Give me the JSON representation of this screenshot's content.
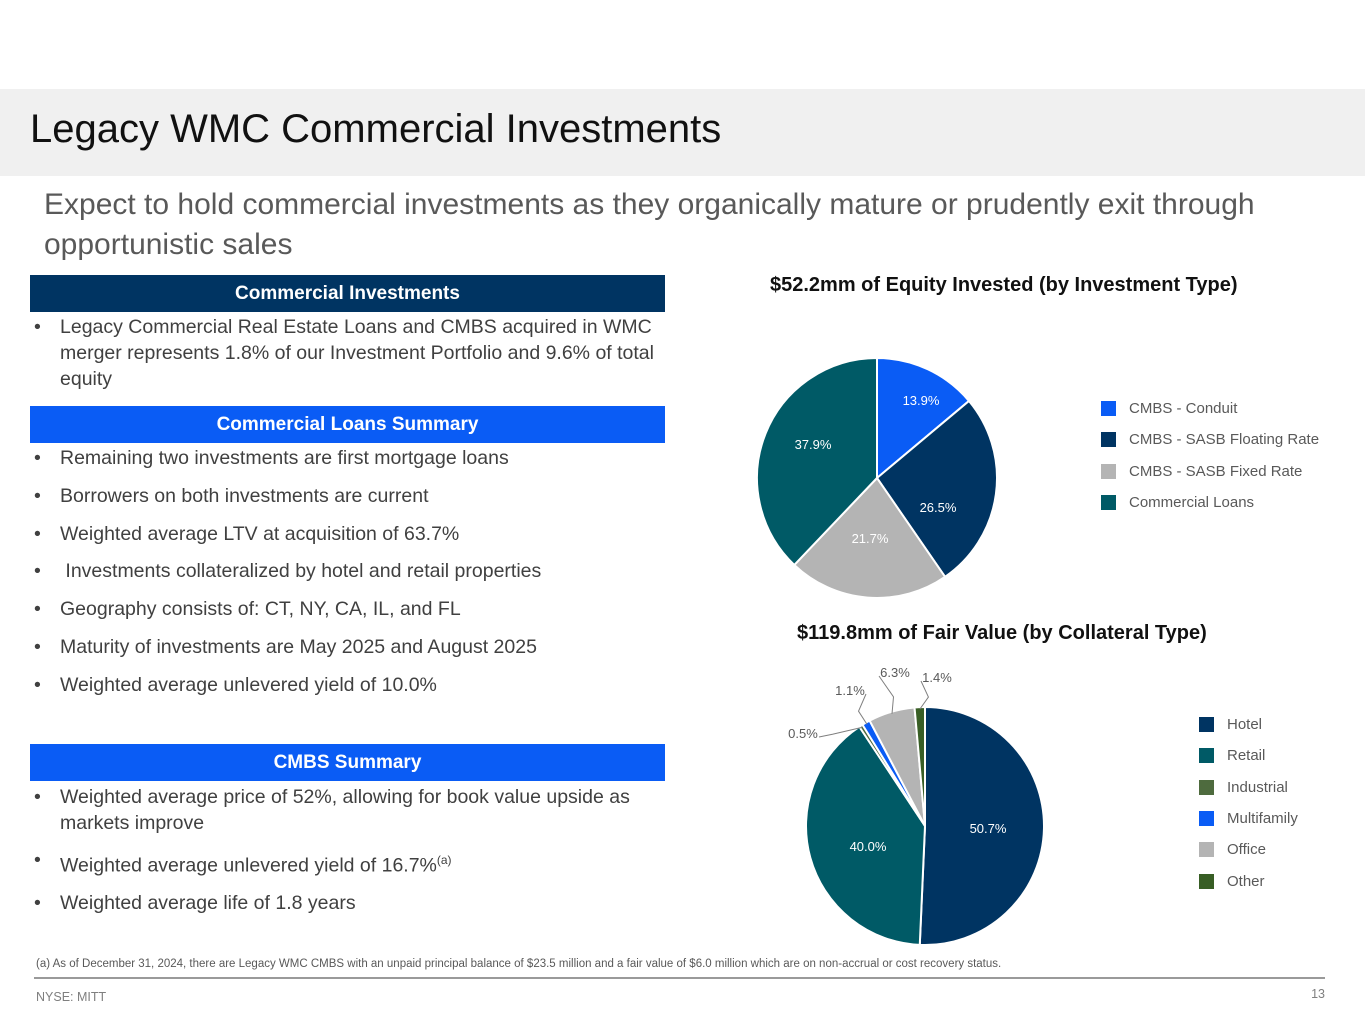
{
  "page": {
    "title": "Legacy WMC Commercial Investments",
    "subtitle": "Expect to hold commercial investments as they organically mature or prudently exit through opportunistic sales"
  },
  "sections": {
    "commercial_investments": {
      "header": "Commercial Investments",
      "bullets": [
        "Legacy Commercial Real Estate Loans and CMBS acquired in WMC merger represents 1.8% of our Investment Portfolio and 9.6% of total equity"
      ]
    },
    "loans_summary": {
      "header": "Commercial Loans Summary",
      "bullets": [
        "Remaining two investments are first mortgage loans",
        "Borrowers on both investments are current",
        "Weighted average LTV at acquisition of 63.7%",
        " Investments collateralized by hotel and retail properties",
        "Geography consists of: CT, NY, CA, IL, and FL",
        "Maturity of investments are May 2025 and August 2025",
        "Weighted average unlevered yield of 10.0%"
      ]
    },
    "cmbs_summary": {
      "header": "CMBS Summary",
      "bullets": [
        "Weighted average price of 52%, allowing for book value upside as markets improve",
        "Weighted average unlevered yield of 16.7%",
        "Weighted average life of 1.8 years"
      ],
      "yield_footnote_marker": "(a)"
    }
  },
  "chart_data": [
    {
      "type": "pie",
      "title": "$52.2mm of Equity Invested (by Investment Type)",
      "categories": [
        "CMBS - Conduit",
        "CMBS - SASB Floating Rate",
        "CMBS - SASB Fixed Rate",
        "Commercial Loans"
      ],
      "values": [
        13.9,
        26.5,
        21.7,
        37.9
      ],
      "labels": [
        "13.9%",
        "26.5%",
        "21.7%",
        "37.9%"
      ],
      "colors": [
        "#0a5cf5",
        "#003462",
        "#b4b4b4",
        "#005a66"
      ],
      "label_colors": [
        "#ffffff",
        "#ffffff",
        "#ffffff",
        "#ffffff"
      ],
      "legend_position": "right"
    },
    {
      "type": "pie",
      "title": "$119.8mm of Fair Value (by Collateral Type)",
      "categories": [
        "Hotel",
        "Retail",
        "Industrial",
        "Multifamily",
        "Office",
        "Other"
      ],
      "values": [
        50.7,
        40.0,
        0.5,
        1.1,
        6.3,
        1.4
      ],
      "labels": [
        "50.7%",
        "40.0%",
        "0.5%",
        "1.1%",
        "6.3%",
        "1.4%"
      ],
      "colors": [
        "#003462",
        "#005a66",
        "#4e6b3e",
        "#0a5cf5",
        "#b4b4b4",
        "#385e25"
      ],
      "label_colors": [
        "#ffffff",
        "#ffffff",
        "#595959",
        "#595959",
        "#595959",
        "#595959"
      ],
      "legend_position": "right"
    }
  ],
  "footnote": "(a) As of December 31, 2024, there are Legacy WMC CMBS with an unpaid principal balance of $23.5 million and a fair value of $6.0 million which are on non-accrual or cost recovery status.",
  "footer": {
    "ticker": "NYSE: MITT",
    "page_number": "13"
  }
}
